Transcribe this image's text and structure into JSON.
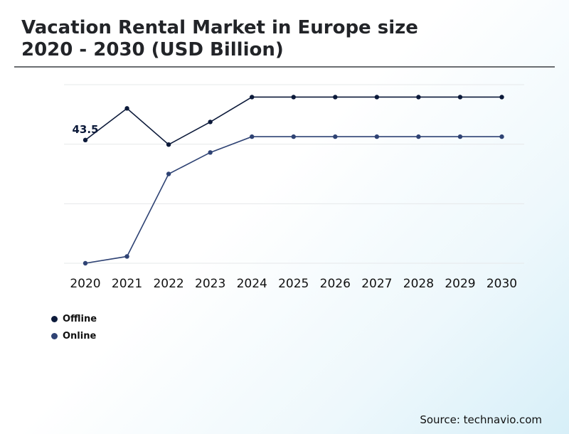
{
  "title": {
    "line1": "Vacation Rental Market in Europe size",
    "line2": "2020 - 2030 (USD Billion)"
  },
  "source": "Source: technavio.com",
  "colors": {
    "offline": "#0c1a3a",
    "online": "#2f4374",
    "grid": "#e6e8ea"
  },
  "chart_data": {
    "type": "line",
    "x": [
      "2020",
      "2021",
      "2022",
      "2023",
      "2024",
      "2025",
      "2026",
      "2027",
      "2028",
      "2029",
      "2030"
    ],
    "grid": true,
    "legend": "bottom-left",
    "series": [
      {
        "name": "Offline",
        "values": [
          43.5,
          46.3,
          43.1,
          45.1,
          47.3,
          47.3,
          47.3,
          47.3,
          47.3,
          47.3,
          47.3
        ]
      },
      {
        "name": "Online",
        "values": [
          32.6,
          33.2,
          40.5,
          42.4,
          43.8,
          43.8,
          43.8,
          43.8,
          43.8,
          43.8,
          43.8
        ]
      }
    ],
    "data_labels": [
      {
        "series": "Offline",
        "x": "2020",
        "text": "43.5"
      }
    ],
    "ylim": [
      32.6,
      48.4
    ]
  }
}
